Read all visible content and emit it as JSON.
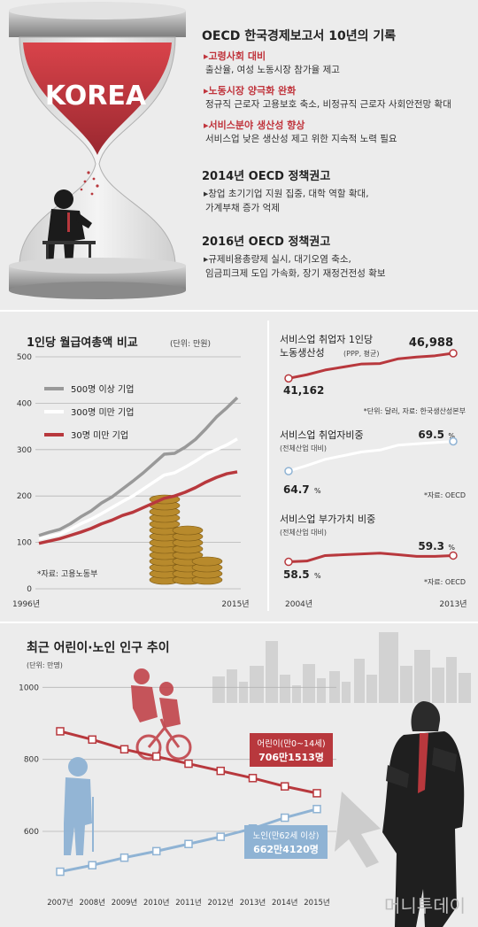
{
  "report": {
    "title": "OECD 한국경제보고서 10년의 기록",
    "items": [
      {
        "head": "▸고령사회 대비",
        "body": "출산율, 여성 노동시장 참가율 제고"
      },
      {
        "head": "▸노동시장 양극화 완화",
        "body": "정규직 근로자 고용보호 축소, 비정규직 근로자 사회안전망 확대"
      },
      {
        "head": "▸서비스분야 생산성 향상",
        "body": "서비스업 낮은 생산성 제고 위한 지속적 노력 필요"
      }
    ],
    "hourglass_label": "KOREA"
  },
  "rec2014": {
    "title": "2014년 OECD 정책권고",
    "lines": [
      "▸창업 초기기업 지원 집중, 대학 역할 확대,",
      "가계부채 증가 억제"
    ]
  },
  "rec2016": {
    "title": "2016년 OECD 정책권고",
    "lines": [
      "▸규제비용총량제 실시, 대기오염 축소,",
      "임금피크제 도입 가속화, 장기 재정건전성 확보"
    ]
  },
  "colors": {
    "red": "#b8383d",
    "gray": "#999999",
    "white": "#ffffff",
    "line_blue": "#8fb3d4"
  },
  "chart_data": [
    {
      "type": "line",
      "title": "1인당 월급여총액 비교",
      "unit": "(단위: 만원)",
      "x_labels": [
        "1996년",
        "2015년"
      ],
      "x": [
        1996,
        1997,
        1998,
        1999,
        2000,
        2001,
        2002,
        2003,
        2004,
        2005,
        2006,
        2007,
        2008,
        2009,
        2010,
        2011,
        2012,
        2013,
        2014,
        2015
      ],
      "y_ticks": [
        0,
        100,
        200,
        300,
        400,
        500
      ],
      "ylim": [
        0,
        500
      ],
      "series": [
        {
          "name": "500명 이상 기업",
          "color": "#999999",
          "values": [
            115,
            122,
            128,
            140,
            155,
            168,
            185,
            198,
            215,
            232,
            250,
            270,
            290,
            292,
            305,
            322,
            345,
            370,
            390,
            412
          ]
        },
        {
          "name": "300명 미만 기업",
          "color": "#ffffff",
          "values": [
            107,
            113,
            118,
            128,
            140,
            150,
            162,
            175,
            188,
            200,
            215,
            230,
            245,
            250,
            262,
            275,
            290,
            300,
            310,
            323
          ]
        },
        {
          "name": "30명 미만 기업",
          "color": "#b8383d",
          "values": [
            98,
            103,
            108,
            115,
            122,
            130,
            140,
            148,
            158,
            165,
            175,
            185,
            195,
            200,
            208,
            218,
            230,
            240,
            248,
            252
          ]
        }
      ],
      "source": "*자료: 고용노동부"
    },
    {
      "type": "line",
      "title": "서비스업 취업자 1인당 노동생산성",
      "title_lines": [
        "서비스업 취업자 1인당",
        "노동생산성"
      ],
      "unit": "(PPP, 평균)",
      "x": [
        2004,
        2005,
        2006,
        2007,
        2008,
        2009,
        2010,
        2011,
        2012,
        2013
      ],
      "values": [
        41162,
        42000,
        43100,
        43800,
        44500,
        44600,
        45700,
        46100,
        46400,
        46988
      ],
      "labels": {
        "start": "41,162",
        "end": "46,988"
      },
      "source": "*단위: 달러, 자료: 한국생산성본부"
    },
    {
      "type": "line",
      "title": "서비스업 취업자비중",
      "unit": "(전체산업 대비)",
      "x": [
        2004,
        2005,
        2006,
        2007,
        2008,
        2009,
        2010,
        2011,
        2012,
        2013
      ],
      "values": [
        64.7,
        65.6,
        66.6,
        67.2,
        67.8,
        68.1,
        68.9,
        69.1,
        69.3,
        69.5
      ],
      "labels": {
        "start": "64.7",
        "end": "69.5"
      },
      "source": "*자료: OECD"
    },
    {
      "type": "line",
      "title": "서비스업 부가가치 비중",
      "unit": "(전체산업 대비)",
      "x": [
        2004,
        2005,
        2006,
        2007,
        2008,
        2009,
        2010,
        2011,
        2012,
        2013
      ],
      "values": [
        58.5,
        58.6,
        59.3,
        59.4,
        59.5,
        59.6,
        59.4,
        59.2,
        59.2,
        59.3
      ],
      "labels": {
        "start": "58.5",
        "end": "59.3"
      },
      "x_labels": [
        "2004년",
        "2013년"
      ],
      "source": "*자료: OECD"
    },
    {
      "type": "line",
      "title": "최근 어린이·노인 인구 추이",
      "unit": "(단위: 만명)",
      "x": [
        "2007년",
        "2008년",
        "2009년",
        "2010년",
        "2011년",
        "2012년",
        "2013년",
        "2014년",
        "2015년"
      ],
      "y_ticks": [
        600,
        800,
        1000
      ],
      "ylim": [
        450,
        1050
      ],
      "series": [
        {
          "name": "어린이(만0~14세)",
          "value_label": "706만1513명",
          "color": "#b8383d",
          "values": [
            878,
            855,
            828,
            808,
            788,
            768,
            748,
            725,
            706
          ]
        },
        {
          "name": "노인(만62세 이상)",
          "value_label": "662만4120명",
          "color": "#8fb3d4",
          "values": [
            488,
            506,
            527,
            545,
            565,
            585,
            608,
            638,
            662
          ]
        }
      ]
    }
  ],
  "watermark": "머니투데이"
}
